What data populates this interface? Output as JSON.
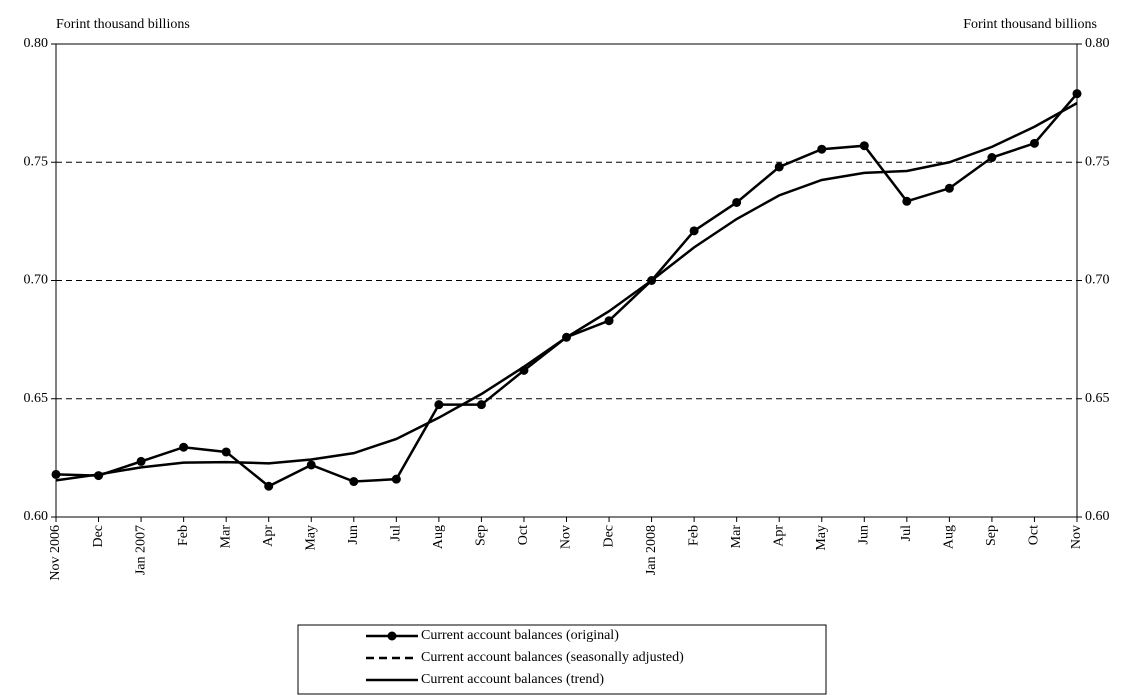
{
  "chart_data": {
    "type": "line",
    "y_label": "Forint thousand billions",
    "y2_label": "Forint thousand billions",
    "categories": [
      "Nov 2006",
      "Dec",
      "Jan 2007",
      "Feb",
      "Mar",
      "Apr",
      "May",
      "Jun",
      "Jul",
      "Aug",
      "Sep",
      "Oct",
      "Nov",
      "Dec",
      "Jan 2008",
      "Feb",
      "Mar",
      "Apr",
      "May",
      "Jun",
      "Jul",
      "Aug",
      "Sep",
      "Oct",
      "Nov"
    ],
    "series": [
      {
        "name": "Current account balances (original)",
        "color": "#000000",
        "style": "marker",
        "values": [
          0.618,
          0.6175,
          0.6235,
          0.6295,
          0.6275,
          0.613,
          0.622,
          0.615,
          0.616,
          0.6475,
          0.6475,
          0.662,
          0.676,
          0.683,
          0.7,
          0.721,
          0.733,
          0.748,
          0.7555,
          0.757,
          0.7335,
          0.739,
          0.752,
          0.758,
          0.779
        ]
      },
      {
        "name": "Current account balances (seasonally adjusted)",
        "color": "#000000",
        "style": "dashed",
        "values": [
          null,
          null,
          null,
          null,
          null,
          null,
          null,
          null,
          null,
          null,
          null,
          null,
          null,
          null,
          null,
          null,
          null,
          null,
          null,
          null,
          null,
          null,
          null,
          null,
          null
        ]
      },
      {
        "name": "Current account balances (trend)",
        "color": "#000000",
        "style": "solid",
        "values": [
          0.6155,
          0.618,
          0.621,
          0.623,
          0.6232,
          0.6227,
          0.6243,
          0.627,
          0.633,
          0.642,
          0.652,
          0.6635,
          0.676,
          0.687,
          0.7,
          0.714,
          0.726,
          0.736,
          0.7425,
          0.7455,
          0.7463,
          0.75,
          0.7565,
          0.765,
          0.775
        ]
      }
    ],
    "ylim": [
      0.6,
      0.8
    ],
    "yticks": [
      {
        "value": 0.6,
        "label": "0.60"
      },
      {
        "value": 0.65,
        "label": "0.65"
      },
      {
        "value": 0.7,
        "label": "0.70"
      },
      {
        "value": 0.75,
        "label": "0.75"
      },
      {
        "value": 0.8,
        "label": "0.80"
      }
    ],
    "y2lim": [
      0.6,
      0.8
    ],
    "y2ticks": [
      {
        "value": 0.6,
        "label": "0.60"
      },
      {
        "value": 0.65,
        "label": "0.65"
      },
      {
        "value": 0.7,
        "label": "0.70"
      },
      {
        "value": 0.75,
        "label": "0.75"
      },
      {
        "value": 0.8,
        "label": "0.80"
      }
    ],
    "grid": true,
    "legend": "bottom"
  }
}
